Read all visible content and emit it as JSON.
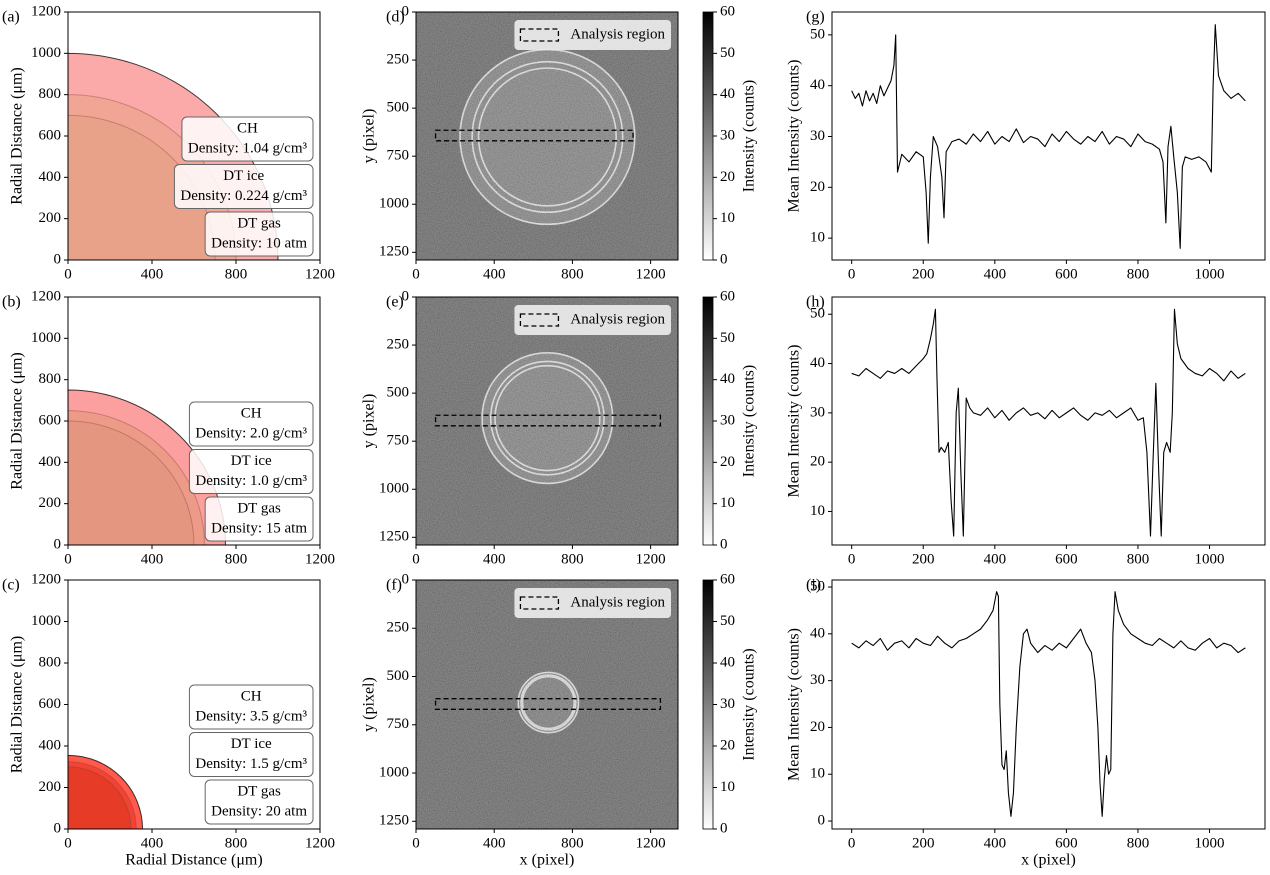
{
  "chart_data": [
    {
      "type": "radial-layers",
      "panel_label": "(a)",
      "xlim": [
        0,
        1200
      ],
      "ylim": [
        0,
        1200
      ],
      "xticks": [
        0,
        400,
        800,
        1200
      ],
      "yticks": [
        0,
        200,
        400,
        600,
        800,
        1000,
        1200
      ],
      "ylabel": "Radial Distance (μm)",
      "layers": [
        {
          "name": "CH",
          "label": "Density: 1.04 g/cm³",
          "radius": 1000,
          "color": "#fca9a9"
        },
        {
          "name": "DT ice",
          "label": "Density: 0.224 g/cm³",
          "radius": 800,
          "color": "#f1a594"
        },
        {
          "name": "DT gas",
          "label": "Density: 10 atm",
          "radius": 700,
          "color": "#e8a28a"
        }
      ]
    },
    {
      "type": "radial-layers",
      "panel_label": "(b)",
      "xlim": [
        0,
        1200
      ],
      "ylim": [
        0,
        1200
      ],
      "xticks": [
        0,
        400,
        800,
        1200
      ],
      "yticks": [
        0,
        200,
        400,
        600,
        800,
        1000,
        1200
      ],
      "ylabel": "Radial Distance (μm)",
      "layers": [
        {
          "name": "CH",
          "label": "Density: 2.0 g/cm³",
          "radius": 750,
          "color": "#fc9f9f"
        },
        {
          "name": "DT ice",
          "label": "Density: 1.0 g/cm³",
          "radius": 650,
          "color": "#ed9a88"
        },
        {
          "name": "DT gas",
          "label": "Density: 15 atm",
          "radius": 600,
          "color": "#e49680"
        }
      ]
    },
    {
      "type": "radial-layers",
      "panel_label": "(c)",
      "xlim": [
        0,
        1200
      ],
      "ylim": [
        0,
        1200
      ],
      "xticks": [
        0,
        400,
        800,
        1200
      ],
      "yticks": [
        0,
        200,
        400,
        600,
        800,
        1000,
        1200
      ],
      "ylabel": "Radial Distance (μm)",
      "xlabel": "Radial Distance (μm)",
      "layers": [
        {
          "name": "CH",
          "label": "Density: 3.5 g/cm³",
          "radius": 355,
          "color": "#ff5a4c"
        },
        {
          "name": "DT ice",
          "label": "Density: 1.5 g/cm³",
          "radius": 325,
          "color": "#f24434"
        },
        {
          "name": "DT gas",
          "label": "Density: 20 atm",
          "radius": 300,
          "color": "#e63b26"
        }
      ]
    },
    {
      "type": "image",
      "panel_label": "(d)",
      "xlim": [
        0,
        1340
      ],
      "ylim": [
        1290,
        0
      ],
      "xticks": [
        0,
        400,
        800,
        1200
      ],
      "yticks": [
        0,
        250,
        500,
        750,
        1000,
        1250
      ],
      "ylabel": "y (pixel)",
      "cmap": "gray_r",
      "background_level": 38,
      "disk_level": 31,
      "center": [
        672,
        650
      ],
      "radii": [
        447,
        385,
        352
      ],
      "analysis_region": {
        "x": [
          100,
          1110
        ],
        "y": [
          615,
          670
        ]
      },
      "legend": "Analysis region",
      "legend_loc": "upper right",
      "colorbar": {
        "label": "Intensity (counts)",
        "lim": [
          0,
          60
        ],
        "ticks": [
          0,
          10,
          20,
          30,
          40,
          50,
          60
        ]
      }
    },
    {
      "type": "image",
      "panel_label": "(e)",
      "xlim": [
        0,
        1340
      ],
      "ylim": [
        1290,
        0
      ],
      "xticks": [
        0,
        400,
        800,
        1200
      ],
      "yticks": [
        0,
        250,
        500,
        750,
        1000,
        1250
      ],
      "ylabel": "y (pixel)",
      "cmap": "gray_r",
      "background_level": 38,
      "disk_level": 31,
      "center": [
        672,
        630
      ],
      "radii": [
        334,
        290,
        268
      ],
      "analysis_region": {
        "x": [
          100,
          1250
        ],
        "y": [
          615,
          670
        ]
      },
      "legend": "Analysis region",
      "legend_loc": "upper right",
      "colorbar": {
        "label": "Intensity (counts)",
        "lim": [
          0,
          60
        ],
        "ticks": [
          0,
          10,
          20,
          30,
          40,
          50,
          60
        ]
      }
    },
    {
      "type": "image",
      "panel_label": "(f)",
      "xlim": [
        0,
        1340
      ],
      "ylim": [
        1290,
        0
      ],
      "xticks": [
        0,
        400,
        800,
        1200
      ],
      "yticks": [
        0,
        250,
        500,
        750,
        1000,
        1250
      ],
      "ylabel": "y (pixel)",
      "xlabel": "x (pixel)",
      "cmap": "gray_r",
      "background_level": 38,
      "disk_level": 33,
      "center": [
        677,
        635
      ],
      "radii": [
        154,
        140,
        132
      ],
      "analysis_region": {
        "x": [
          100,
          1250
        ],
        "y": [
          615,
          670
        ]
      },
      "legend": "Analysis region",
      "legend_loc": "upper right",
      "colorbar": {
        "label": "Intensity (counts)",
        "lim": [
          0,
          60
        ],
        "ticks": [
          0,
          10,
          20,
          30,
          40,
          50,
          60
        ]
      }
    },
    {
      "type": "line",
      "panel_label": "(g)",
      "xlim": [
        -55,
        1155
      ],
      "ylim": [
        5.7,
        54.5
      ],
      "xticks": [
        0,
        200,
        400,
        600,
        800,
        1000
      ],
      "yticks": [
        10,
        20,
        30,
        40,
        50
      ],
      "ylabel": "Mean Intensity (counts)",
      "color": "#000000",
      "x": [
        0,
        10,
        20,
        30,
        40,
        50,
        60,
        70,
        80,
        90,
        100,
        110,
        118,
        123,
        128,
        140,
        160,
        180,
        200,
        208,
        214,
        220,
        228,
        240,
        252,
        258,
        264,
        280,
        300,
        320,
        340,
        360,
        380,
        400,
        420,
        440,
        460,
        480,
        500,
        520,
        540,
        560,
        580,
        600,
        620,
        640,
        660,
        680,
        700,
        720,
        740,
        760,
        780,
        800,
        820,
        840,
        860,
        870,
        878,
        884,
        892,
        900,
        910,
        918,
        924,
        932,
        950,
        970,
        990,
        1005,
        1010,
        1016,
        1025,
        1040,
        1060,
        1080,
        1100
      ],
      "values": [
        39,
        37.5,
        38.5,
        36,
        39,
        37,
        38.5,
        36.5,
        40,
        38,
        39.5,
        41,
        44,
        50,
        23,
        26.5,
        25,
        27,
        26,
        19,
        9,
        22,
        30,
        28,
        22,
        14,
        27,
        29,
        29.5,
        28.5,
        30.5,
        29,
        31,
        28.5,
        30,
        29,
        31.5,
        28.8,
        30,
        29.5,
        28,
        30.5,
        29,
        31,
        29.5,
        28.5,
        30,
        29,
        31,
        28.5,
        30,
        29.5,
        28,
        30.5,
        29,
        28.5,
        27.5,
        25,
        13,
        28,
        32,
        26,
        19,
        8,
        24,
        26,
        25.5,
        26,
        25,
        23,
        40,
        52,
        42,
        39,
        37.5,
        38.5,
        37
      ]
    },
    {
      "type": "line",
      "panel_label": "(h)",
      "xlim": [
        -55,
        1155
      ],
      "ylim": [
        3.2,
        53.5
      ],
      "xticks": [
        0,
        200,
        400,
        600,
        800,
        1000
      ],
      "yticks": [
        10,
        20,
        30,
        40,
        50
      ],
      "ylabel": "Mean Intensity (counts)",
      "color": "#000000",
      "x": [
        0,
        20,
        40,
        60,
        80,
        100,
        120,
        140,
        160,
        180,
        200,
        210,
        220,
        228,
        234,
        238,
        244,
        250,
        260,
        270,
        278,
        285,
        292,
        298,
        305,
        312,
        320,
        330,
        340,
        360,
        380,
        400,
        420,
        440,
        460,
        480,
        500,
        520,
        540,
        560,
        580,
        600,
        620,
        640,
        660,
        680,
        700,
        720,
        740,
        760,
        780,
        800,
        815,
        825,
        835,
        842,
        850,
        858,
        865,
        872,
        880,
        890,
        896,
        902,
        910,
        920,
        940,
        960,
        980,
        1000,
        1020,
        1040,
        1060,
        1080,
        1100
      ],
      "values": [
        38,
        37.5,
        39,
        38,
        37,
        38.5,
        38,
        39,
        38,
        39.5,
        41,
        42,
        45,
        48,
        51,
        38,
        22,
        23,
        22,
        24,
        12,
        5,
        30,
        35,
        18,
        5,
        33,
        31,
        30,
        29.5,
        31,
        29,
        30.5,
        28.5,
        30,
        31,
        29.5,
        30,
        28.8,
        30.5,
        29,
        30,
        31,
        29.5,
        28.5,
        30,
        29.5,
        30.5,
        29,
        30,
        31,
        28.5,
        29,
        22,
        5,
        20,
        36,
        18,
        5,
        22,
        24,
        22,
        30,
        51,
        44,
        41,
        39,
        38,
        37.5,
        39,
        38,
        36.5,
        38.5,
        37,
        38
      ]
    },
    {
      "type": "line",
      "panel_label": "(i)",
      "xlim": [
        -55,
        1155
      ],
      "ylim": [
        -1.7,
        51.5
      ],
      "xticks": [
        0,
        200,
        400,
        600,
        800,
        1000
      ],
      "yticks": [
        0,
        10,
        20,
        30,
        40,
        50
      ],
      "ylabel": "Mean Intensity (counts)",
      "xlabel": "x (pixel)",
      "color": "#000000",
      "x": [
        0,
        20,
        40,
        60,
        80,
        100,
        120,
        140,
        160,
        180,
        200,
        220,
        240,
        260,
        280,
        300,
        320,
        340,
        360,
        380,
        395,
        405,
        410,
        414,
        420,
        426,
        432,
        438,
        445,
        452,
        460,
        470,
        480,
        490,
        500,
        510,
        520,
        540,
        560,
        580,
        600,
        620,
        640,
        655,
        670,
        680,
        688,
        694,
        700,
        706,
        712,
        718,
        724,
        730,
        736,
        745,
        760,
        780,
        800,
        820,
        840,
        860,
        880,
        900,
        920,
        940,
        960,
        980,
        1000,
        1020,
        1040,
        1060,
        1080,
        1100
      ],
      "values": [
        38,
        37,
        38.5,
        37.5,
        39,
        36.5,
        38,
        38.5,
        37,
        39,
        38,
        37.5,
        39.5,
        38,
        37,
        38.5,
        39,
        40,
        41,
        43,
        45,
        49,
        48,
        25,
        12,
        11,
        15,
        6,
        1,
        6,
        20,
        33,
        40,
        41,
        38,
        37,
        36,
        37.5,
        36.5,
        38,
        37,
        39,
        41,
        38,
        36,
        30,
        20,
        8,
        1,
        9,
        14,
        10,
        11,
        40,
        49,
        45,
        42,
        40,
        39,
        38,
        37.5,
        39,
        38,
        37,
        38.5,
        37,
        36.5,
        38,
        39,
        37,
        38,
        37.5,
        36,
        37
      ]
    }
  ]
}
